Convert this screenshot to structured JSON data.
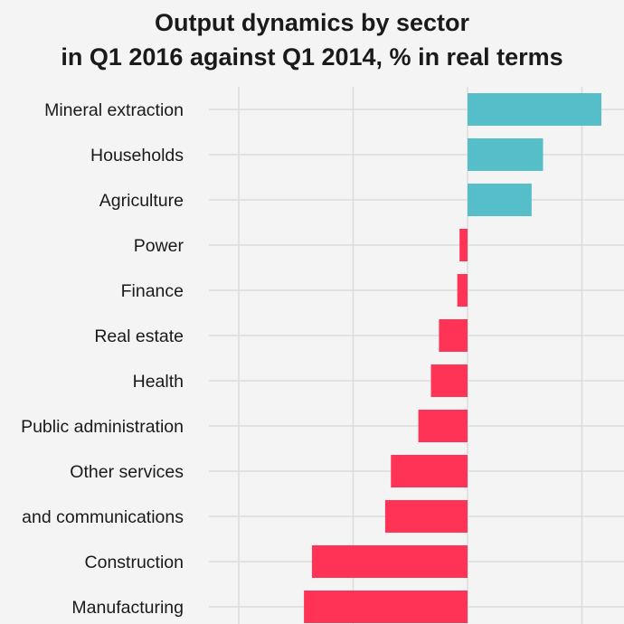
{
  "chart_data": {
    "type": "bar",
    "orientation": "horizontal",
    "title": "Output dynamics by sector in Q1 2016 against Q1 2014, % in real terms",
    "title_lines": [
      "Output dynamics by sector",
      "in Q1 2016 against Q1 2014, % in real terms"
    ],
    "xlabel": "",
    "ylabel": "",
    "xlim": [
      -20.5,
      13.5
    ],
    "grid_x": [
      -20,
      -10,
      0,
      10
    ],
    "grid": true,
    "categories": [
      "Mineral extraction",
      "Households",
      "Agriculture",
      "Power",
      "Finance",
      "Real estate",
      "Health",
      "Public administration",
      "Other services",
      "and communications",
      "Construction",
      "Manufacturing"
    ],
    "values": [
      11.7,
      6.6,
      5.6,
      -0.7,
      -0.9,
      -2.5,
      -3.2,
      -4.3,
      -6.7,
      -7.2,
      -13.6,
      -14.3
    ],
    "colors": {
      "positive": "#56bec9",
      "negative": "#ff3355",
      "grid": "#dcdcdc",
      "background": "#f4f4f4"
    }
  }
}
